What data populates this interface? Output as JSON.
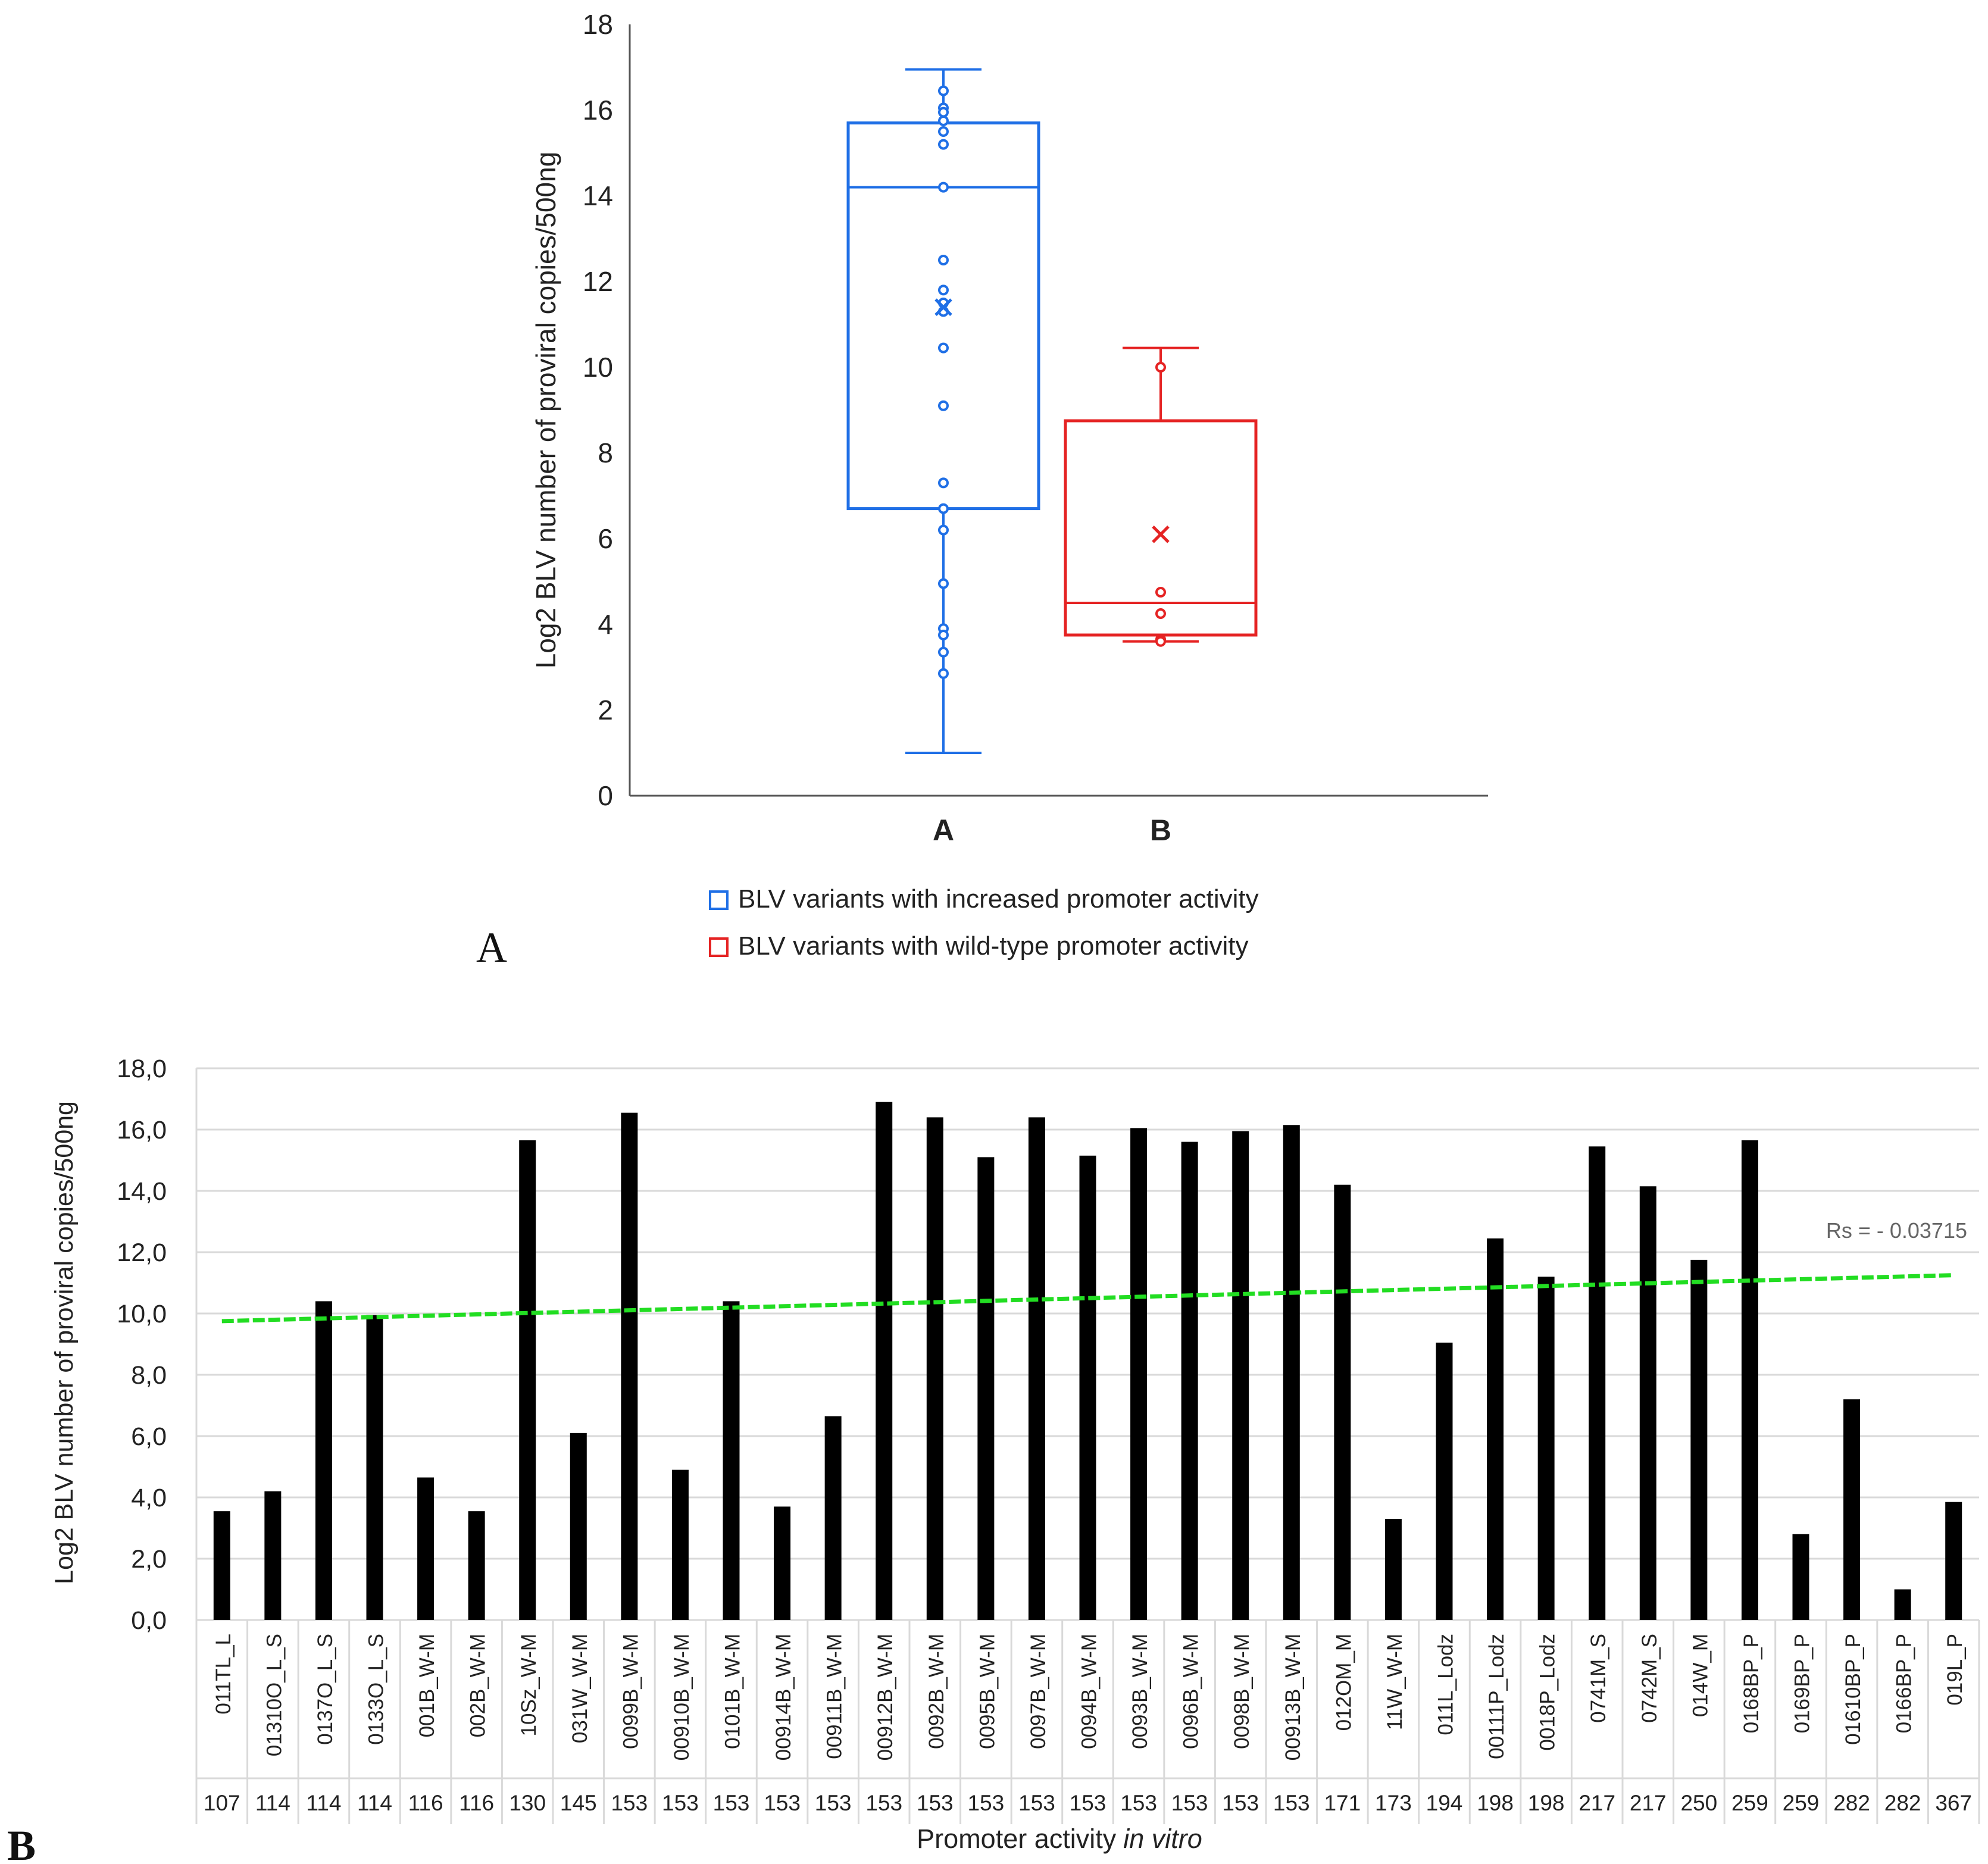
{
  "panel_labels": {
    "a": "A",
    "b": "B"
  },
  "colors": {
    "group_a": "#1f6fe6",
    "group_b": "#e52323",
    "bar": "#000000",
    "trend": "#22dd22",
    "grid": "#d9d9d9",
    "axis": "#555555",
    "text": "#222222",
    "rs_text": "#666666"
  },
  "chart_data": [
    {
      "type": "box",
      "title": "",
      "ylabel": "Log2 BLV number of proviral copies/500ng",
      "xlabel": "",
      "ylim": [
        0,
        18
      ],
      "yticks": [
        "0",
        "2",
        "4",
        "6",
        "8",
        "10",
        "12",
        "14",
        "16",
        "18"
      ],
      "categories": [
        "A",
        "B"
      ],
      "legend": [
        {
          "key": "A",
          "label": "BLV variants with increased promoter activity"
        },
        {
          "key": "B",
          "label": "BLV variants with wild-type promoter activity"
        }
      ],
      "groups": [
        {
          "name": "A",
          "whisker_low": 1.0,
          "q1": 6.7,
          "median": 14.2,
          "q3": 15.7,
          "whisker_high": 16.95,
          "mean": 11.4,
          "points": [
            16.45,
            16.05,
            15.95,
            15.75,
            15.5,
            15.2,
            14.2,
            12.5,
            11.8,
            11.5,
            11.3,
            10.45,
            9.1,
            7.3,
            6.7,
            6.2,
            4.95,
            3.9,
            3.75,
            3.35,
            2.85
          ]
        },
        {
          "name": "B",
          "whisker_low": 3.6,
          "q1": 3.75,
          "median": 4.5,
          "q3": 8.75,
          "whisker_high": 10.45,
          "mean": 6.1,
          "points": [
            10.0,
            4.75,
            4.25,
            3.65,
            3.6
          ]
        }
      ]
    },
    {
      "type": "bar",
      "title": "",
      "ylabel": "Log2 BLV number of proviral copies/500ng",
      "xlabel": "Promoter activity",
      "xlabel_italic": "in vitro",
      "ylim": [
        0,
        18
      ],
      "yticks": [
        "0,0",
        "2,0",
        "4,0",
        "6,0",
        "8,0",
        "10,0",
        "12,0",
        "14,0",
        "16,0",
        "18,0"
      ],
      "categories": [
        "011TL_L",
        "01310O_L_S",
        "0137O_L_S",
        "0133O_L_S",
        "001B_W-M",
        "002B_W-M",
        "10Sz_W-M",
        "031W_W-M",
        "0099B_W-M",
        "00910B_W-M",
        "0101B_W-M",
        "00914B_W-M",
        "00911B_W-M",
        "00912B_W-M",
        "0092B_W-M",
        "0095B_W-M",
        "0097B_W-M",
        "0094B_W-M",
        "0093B_W-M",
        "0096B_W-M",
        "0098B_W-M",
        "00913B_W-M",
        "012OM_M",
        "11W_W-M",
        "011L_Lodz",
        "00111P_Lodz",
        "0018P_Lodz",
        "0741M_S",
        "0742M_S",
        "014W_M",
        "0168BP_P",
        "0169BP_P",
        "01610BP_P",
        "0166BP_P",
        "019L_P"
      ],
      "activity": [
        "107",
        "114",
        "114",
        "114",
        "116",
        "116",
        "130",
        "145",
        "153",
        "153",
        "153",
        "153",
        "153",
        "153",
        "153",
        "153",
        "153",
        "153",
        "153",
        "153",
        "153",
        "153",
        "171",
        "173",
        "194",
        "198",
        "198",
        "217",
        "217",
        "250",
        "259",
        "259",
        "282",
        "282",
        "367"
      ],
      "values": [
        3.55,
        4.2,
        10.4,
        9.95,
        4.65,
        3.55,
        15.65,
        6.1,
        16.55,
        4.9,
        10.4,
        3.7,
        6.65,
        16.9,
        16.4,
        15.1,
        16.4,
        15.15,
        16.05,
        15.6,
        15.95,
        16.15,
        14.2,
        3.3,
        9.05,
        12.45,
        11.2,
        15.45,
        14.15,
        11.75,
        15.65,
        2.8,
        7.2,
        1.0,
        3.85
      ],
      "trendline": {
        "start": 9.75,
        "end": 11.25,
        "label": "Rs = - 0.03715"
      }
    }
  ]
}
